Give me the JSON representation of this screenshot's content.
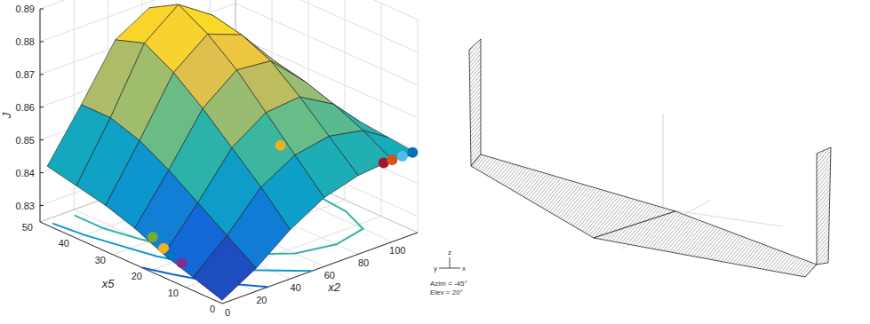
{
  "chart_data": {
    "type": "surface",
    "xlabel": "x2",
    "ylabel": "x5",
    "zlabel": "J",
    "x": [
      0,
      20,
      40,
      60,
      80,
      100,
      115
    ],
    "y": [
      0,
      8,
      16,
      24,
      32,
      40,
      48
    ],
    "z": [
      [
        0.826,
        0.832,
        0.84,
        0.846,
        0.849,
        0.85,
        0.849
      ],
      [
        0.829,
        0.838,
        0.849,
        0.855,
        0.857,
        0.855,
        0.85
      ],
      [
        0.832,
        0.844,
        0.857,
        0.864,
        0.865,
        0.859,
        0.851
      ],
      [
        0.836,
        0.85,
        0.865,
        0.873,
        0.872,
        0.862,
        0.851
      ],
      [
        0.839,
        0.855,
        0.872,
        0.88,
        0.876,
        0.864,
        0.851
      ],
      [
        0.841,
        0.858,
        0.877,
        0.885,
        0.878,
        0.865,
        0.851
      ],
      [
        0.843,
        0.858,
        0.874,
        0.88,
        0.874,
        0.862,
        0.85
      ]
    ],
    "xlim": [
      0,
      115
    ],
    "ylim": [
      0,
      50
    ],
    "zlim": [
      0.825,
      0.89
    ],
    "xticks": [
      0,
      20,
      40,
      60,
      80,
      100
    ],
    "yticks": [
      0,
      10,
      20,
      30,
      40,
      50
    ],
    "zticks": [
      0.83,
      0.84,
      0.85,
      0.86,
      0.87,
      0.88,
      0.89
    ],
    "grid": true,
    "contours": [
      {
        "level": 0.835,
        "x2": [
          27,
          13,
          5,
          0
        ],
        "x5": [
          0,
          8,
          16,
          22
        ]
      },
      {
        "level": 0.845,
        "x2": [
          53,
          33,
          21,
          13,
          9,
          5,
          3
        ],
        "x5": [
          0,
          8,
          16,
          24,
          32,
          40,
          48
        ]
      },
      {
        "level": 0.855,
        "x2": [
          16,
          16,
          20,
          27,
          37,
          60,
          80,
          100,
          107,
          109,
          110,
          111,
          110
        ],
        "x5": [
          48,
          40,
          32,
          24,
          16,
          8,
          6,
          8,
          16,
          24,
          32,
          40,
          48
        ]
      }
    ],
    "points": [
      {
        "x2": 2,
        "x5": 20,
        "J": 0.835,
        "color": "#77ac30"
      },
      {
        "x2": 2,
        "x5": 17,
        "J": 0.833,
        "color": "#edb120"
      },
      {
        "x2": 2,
        "x5": 15,
        "J": 0.832,
        "color": "#0072bd"
      },
      {
        "x2": 2,
        "x5": 12,
        "J": 0.831,
        "color": "#7e2f8e"
      },
      {
        "x2": 60,
        "x5": 12,
        "J": 0.856,
        "color": "#edb120"
      },
      {
        "x2": 95,
        "x5": 0,
        "J": 0.85,
        "color": "#a2142f"
      },
      {
        "x2": 100,
        "x5": 0,
        "J": 0.85,
        "color": "#d95319"
      },
      {
        "x2": 106,
        "x5": 0,
        "J": 0.85,
        "color": "#4dbeee"
      },
      {
        "x2": 112,
        "x5": 0,
        "J": 0.85,
        "color": "#0072bd"
      }
    ],
    "annotations": [
      "Azim = -45°",
      "Elev = 20°"
    ],
    "view_axis_labels": [
      "z",
      "y",
      "x"
    ]
  }
}
